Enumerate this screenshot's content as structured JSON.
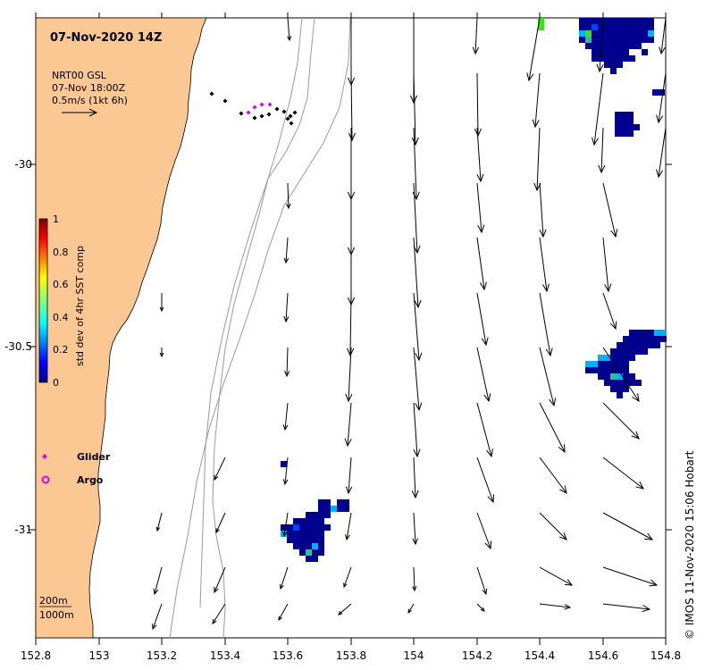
{
  "map": {
    "title": "07-Nov-2020 14Z",
    "legend_source": "NRT00 GSL",
    "legend_time": "07-Nov 18:00Z",
    "legend_scale": "0.5m/s (1kt 6h)",
    "x_ticks": [
      "152.8",
      "153",
      "153.2",
      "153.4",
      "153.6",
      "153.8",
      "154",
      "154.2",
      "154.4",
      "154.6",
      "154.8"
    ],
    "y_ticks": [
      "-30",
      "-30.5",
      "-31"
    ],
    "colorbar": {
      "label": "std dev of 4hr SST comp",
      "ticks": [
        "1",
        "0.8",
        "0.6",
        "0.4",
        "0.2",
        "0"
      ]
    },
    "markers": {
      "glider_label": "Glider",
      "argo_label": "Argo"
    },
    "contours": {
      "label_200": "200m",
      "label_1000": "1000m"
    },
    "credit": "© IMOS 11-Nov-2020 15:06 Hobart",
    "colors": {
      "land": "#fbc793",
      "glider": "#e600e6",
      "argo": "#e600e6",
      "track": "#000000"
    }
  }
}
